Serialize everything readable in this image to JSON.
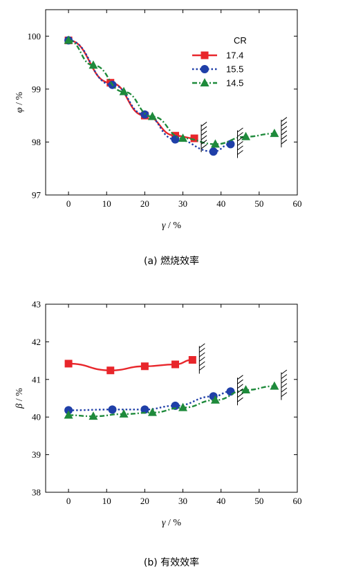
{
  "chart_data": [
    {
      "type": "line",
      "caption": "(a) 燃烧效率",
      "xlabel_symbol": "γ",
      "xlabel_unit": " / %",
      "ylabel_symbol": "φ",
      "ylabel_unit": " / %",
      "xlim": [
        -6,
        60
      ],
      "ylim": [
        97,
        100.5
      ],
      "xticks": [
        0,
        10,
        20,
        30,
        40,
        50,
        60
      ],
      "yticks": [
        97,
        98,
        99,
        100
      ],
      "legend_title": "CR",
      "legend_position": "top-right",
      "series": [
        {
          "name": "17.4",
          "color": "#e8262b",
          "marker": "square",
          "dash": "solid",
          "x": [
            0,
            11,
            20,
            28,
            33
          ],
          "y": [
            99.92,
            99.12,
            98.5,
            98.12,
            98.07
          ]
        },
        {
          "name": "15.5",
          "color": "#1f3fa8",
          "marker": "circle",
          "dash": "dot",
          "x": [
            0,
            11.5,
            20,
            28,
            38,
            42.5
          ],
          "y": [
            99.92,
            99.08,
            98.52,
            98.05,
            97.82,
            97.96
          ]
        },
        {
          "name": "14.5",
          "color": "#1e8a3b",
          "marker": "triangle",
          "dash": "dashdot",
          "x": [
            0,
            6.5,
            14.5,
            22,
            30,
            38.5,
            46.5,
            54
          ],
          "y": [
            99.92,
            99.45,
            98.95,
            98.48,
            98.07,
            97.96,
            98.1,
            98.16
          ]
        }
      ]
    },
    {
      "type": "line",
      "caption": "(b) 有效效率",
      "xlabel_symbol": "γ",
      "xlabel_unit": " / %",
      "ylabel_symbol": "β",
      "ylabel_unit": " / %",
      "xlim": [
        -6,
        60
      ],
      "ylim": [
        38,
        43
      ],
      "xticks": [
        0,
        10,
        20,
        30,
        40,
        50,
        60
      ],
      "yticks": [
        38,
        39,
        40,
        41,
        42,
        43
      ],
      "series": [
        {
          "name": "17.4",
          "color": "#e8262b",
          "marker": "square",
          "dash": "solid",
          "x": [
            0,
            11,
            20,
            28,
            32.5
          ],
          "y": [
            41.42,
            41.24,
            41.35,
            41.4,
            41.52
          ]
        },
        {
          "name": "15.5",
          "color": "#1f3fa8",
          "marker": "circle",
          "dash": "dot",
          "x": [
            0,
            11.5,
            20,
            28,
            38,
            42.5
          ],
          "y": [
            40.18,
            40.2,
            40.2,
            40.3,
            40.55,
            40.68
          ]
        },
        {
          "name": "14.5",
          "color": "#1e8a3b",
          "marker": "triangle",
          "dash": "dashdot",
          "x": [
            0,
            6.5,
            14.5,
            22,
            30,
            38.5,
            46.5,
            54
          ],
          "y": [
            40.05,
            40.02,
            40.08,
            40.12,
            40.25,
            40.45,
            40.72,
            40.82
          ]
        }
      ]
    }
  ]
}
